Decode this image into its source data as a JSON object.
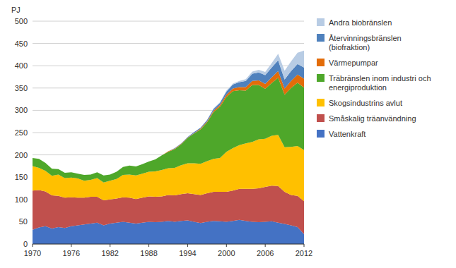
{
  "chart_data": {
    "type": "area",
    "stacked": true,
    "ylabel": "PJ",
    "x": [
      1970,
      1971,
      1972,
      1973,
      1974,
      1975,
      1976,
      1977,
      1978,
      1979,
      1980,
      1981,
      1982,
      1983,
      1984,
      1985,
      1986,
      1987,
      1988,
      1989,
      1990,
      1991,
      1992,
      1993,
      1994,
      1995,
      1996,
      1997,
      1998,
      1999,
      2000,
      2001,
      2002,
      2003,
      2004,
      2005,
      2006,
      2007,
      2008,
      2009,
      2010,
      2011,
      2012
    ],
    "series": [
      {
        "name": "Vattenkraft",
        "color": "#4472C4",
        "values": [
          32,
          37,
          40,
          35,
          38,
          36,
          40,
          42,
          44,
          46,
          48,
          42,
          46,
          48,
          50,
          48,
          46,
          48,
          50,
          49,
          50,
          52,
          50,
          52,
          53,
          50,
          47,
          50,
          52,
          51,
          50,
          52,
          54,
          52,
          50,
          49,
          50,
          51,
          48,
          45,
          42,
          38,
          22
        ]
      },
      {
        "name": "Småskalig träanvändning",
        "color": "#C0504D",
        "values": [
          88,
          84,
          78,
          74,
          70,
          68,
          65,
          62,
          60,
          60,
          58,
          56,
          54,
          54,
          55,
          56,
          55,
          56,
          57,
          57,
          57,
          58,
          59,
          60,
          61,
          62,
          63,
          64,
          65,
          66,
          67,
          68,
          70,
          72,
          74,
          76,
          78,
          80,
          82,
          72,
          68,
          70,
          74
        ]
      },
      {
        "name": "Skogsindustrins avlut",
        "color": "#FFC000",
        "values": [
          55,
          50,
          46,
          44,
          48,
          44,
          44,
          43,
          38,
          38,
          42,
          40,
          42,
          44,
          50,
          52,
          53,
          54,
          55,
          57,
          59,
          60,
          62,
          65,
          67,
          69,
          70,
          72,
          74,
          76,
          90,
          95,
          98,
          102,
          105,
          110,
          108,
          112,
          115,
          100,
          108,
          112,
          115
        ]
      },
      {
        "name": "Träbränslen  inom industri och\nenergiproduktion",
        "color": "#4EA72A",
        "values": [
          18,
          20,
          18,
          16,
          12,
          12,
          12,
          11,
          13,
          12,
          13,
          16,
          14,
          16,
          18,
          20,
          20,
          21,
          23,
          27,
          33,
          37,
          42,
          47,
          57,
          67,
          77,
          87,
          105,
          115,
          123,
          128,
          123,
          118,
          128,
          122,
          112,
          118,
          128,
          118,
          132,
          142,
          140
        ]
      },
      {
        "name": "Värmepumpar",
        "color": "#E36C09",
        "values": [
          0,
          0,
          0,
          0,
          0,
          0,
          0,
          0,
          0,
          0,
          0,
          0,
          0,
          0,
          0,
          0,
          0,
          0,
          0,
          0,
          0,
          1,
          1,
          1,
          1,
          1,
          2,
          2,
          3,
          4,
          5,
          6,
          7,
          8,
          9,
          10,
          11,
          13,
          15,
          14,
          16,
          18,
          20
        ]
      },
      {
        "name": "Återvinningsbränslen\n(biofraktion)",
        "color": "#4F81BD",
        "values": [
          0,
          0,
          0,
          0,
          0,
          0,
          0,
          0,
          0,
          0,
          0,
          0,
          0,
          0,
          0,
          0,
          0,
          0,
          0,
          0,
          0,
          0,
          1,
          1,
          1,
          2,
          2,
          3,
          4,
          5,
          7,
          9,
          11,
          14,
          16,
          18,
          20,
          22,
          24,
          20,
          22,
          24,
          25
        ]
      },
      {
        "name": "Andra biobränslen",
        "color": "#B8CCE4",
        "values": [
          0,
          0,
          0,
          0,
          0,
          0,
          0,
          0,
          0,
          0,
          0,
          0,
          0,
          0,
          0,
          0,
          0,
          0,
          0,
          0,
          0,
          0,
          0,
          0,
          0,
          0,
          0,
          0,
          1,
          1,
          2,
          2,
          3,
          4,
          5,
          6,
          7,
          10,
          15,
          20,
          22,
          25,
          38
        ]
      }
    ],
    "xlim": [
      1970,
      2012
    ],
    "xticks": [
      1970,
      1976,
      1982,
      1988,
      1994,
      2000,
      2006,
      2012
    ],
    "ylim": [
      0,
      500
    ],
    "yticks": [
      0,
      50,
      100,
      150,
      200,
      250,
      300,
      350,
      400,
      450,
      500
    ],
    "grid": true,
    "legend": "right"
  }
}
